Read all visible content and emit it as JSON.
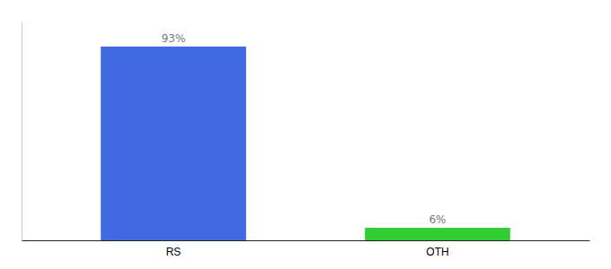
{
  "chart_data": {
    "type": "bar",
    "categories": [
      "RS",
      "OTH"
    ],
    "values": [
      93,
      6
    ],
    "colors": [
      "#4169e1",
      "#32cd32"
    ],
    "data_labels": true,
    "value_labels": [
      "93%",
      "6%"
    ],
    "ylim": [
      0,
      105
    ],
    "tick_labels": "x"
  }
}
